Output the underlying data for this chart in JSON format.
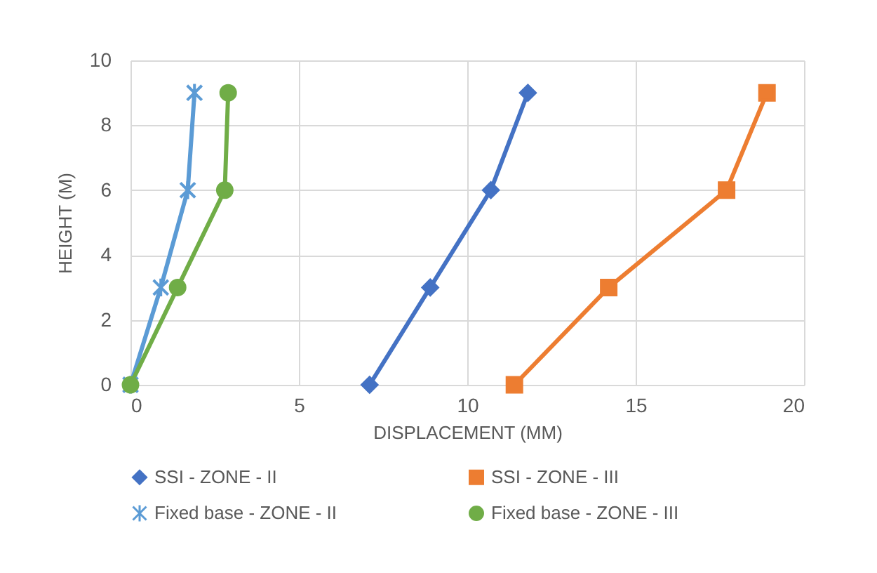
{
  "chart_data": {
    "type": "line",
    "xlabel": "DISPLACEMENT (MM)",
    "ylabel": "HEIGHT (M)",
    "xlim": [
      0,
      20
    ],
    "xticks": [
      0,
      5,
      10,
      15,
      20
    ],
    "ylim": [
      0,
      10
    ],
    "yticks": [
      0,
      2,
      4,
      6,
      8,
      10
    ],
    "grid": true,
    "legend": "bottom",
    "series": [
      {
        "name": "SSI - ZONE - II",
        "color": "#4472c4",
        "marker": "diamond",
        "x": [
          7.1,
          8.9,
          10.7,
          11.8
        ],
        "values": [
          0,
          3,
          6,
          9
        ]
      },
      {
        "name": "SSI - ZONE - III",
        "color": "#ed7d31",
        "marker": "square",
        "x": [
          11.4,
          14.2,
          17.7,
          18.9
        ],
        "values": [
          0,
          3,
          6,
          9
        ]
      },
      {
        "name": "Fixed base - ZONE - II",
        "color": "#5b9bd5",
        "marker": "cross",
        "x": [
          0,
          0.9,
          1.7,
          1.9
        ],
        "values": [
          0,
          3,
          6,
          9
        ]
      },
      {
        "name": "Fixed base - ZONE - III",
        "color": "#70ad47",
        "marker": "circle",
        "x": [
          0,
          1.4,
          2.8,
          2.9
        ],
        "values": [
          0,
          3,
          6,
          9
        ]
      }
    ]
  }
}
